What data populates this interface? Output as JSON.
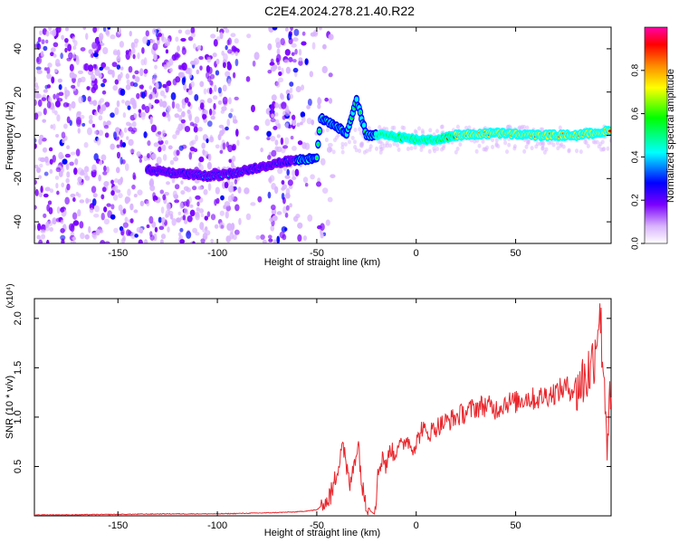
{
  "title": "C2E4.2024.278.21.40.R22",
  "colors": {
    "axis": "#000000",
    "snr_line": "#e8262c",
    "background": "#ffffff",
    "colormap": [
      "#ffffff",
      "#d9b3ff",
      "#7a00ff",
      "#0000ff",
      "#00ffff",
      "#00ff00",
      "#ffff00",
      "#ff8c00",
      "#ff0000",
      "#ff00aa"
    ]
  },
  "chart_data": [
    {
      "type": "heatmap",
      "title": "C2E4.2024.278.21.40.R22",
      "xlabel": "Height of straight line (km)",
      "ylabel": "Frequency (Hz)",
      "xlim": [
        -192,
        98
      ],
      "ylim": [
        -50,
        50
      ],
      "xticks": [
        -150,
        -100,
        -50,
        0,
        50
      ],
      "yticks": [
        -40,
        -20,
        0,
        20,
        40
      ],
      "colorbar": {
        "label": "Normalized spectral amplitude",
        "range": [
          0,
          1
        ],
        "ticks": [
          "0.0",
          "0.2",
          "0.4",
          "0.6",
          "0.8"
        ]
      },
      "ridge": [
        {
          "x": -135,
          "y": -16
        },
        {
          "x": -125,
          "y": -17
        },
        {
          "x": -105,
          "y": -19
        },
        {
          "x": -95,
          "y": -18
        },
        {
          "x": -85,
          "y": -16
        },
        {
          "x": -75,
          "y": -14
        },
        {
          "x": -65,
          "y": -12
        },
        {
          "x": -55,
          "y": -11
        },
        {
          "x": -50,
          "y": -10
        },
        {
          "x": -48,
          "y": 8
        },
        {
          "x": -40,
          "y": 4
        },
        {
          "x": -35,
          "y": 1
        },
        {
          "x": -30,
          "y": 16
        },
        {
          "x": -25,
          "y": 0
        },
        {
          "x": -15,
          "y": 0
        },
        {
          "x": 0,
          "y": -2
        },
        {
          "x": 10,
          "y": -2
        },
        {
          "x": 20,
          "y": 0
        },
        {
          "x": 40,
          "y": 1
        },
        {
          "x": 60,
          "y": 0
        },
        {
          "x": 70,
          "y": 0
        },
        {
          "x": 80,
          "y": 0
        },
        {
          "x": 98,
          "y": 2
        }
      ]
    },
    {
      "type": "line",
      "title": "",
      "xlabel": "Height of straight line (km)",
      "ylabel": "SNR (10 * v/v)",
      "y_multiplier": "(x10⁴)",
      "xlim": [
        -192,
        98
      ],
      "ylim": [
        0,
        2.2
      ],
      "xticks": [
        -150,
        -100,
        -50,
        0,
        50
      ],
      "yticks": [
        0.5,
        1.0,
        1.5,
        2.0
      ],
      "ytick_labels": [
        "0.5",
        "1.0",
        "1.5",
        "2.0"
      ],
      "series": [
        {
          "values_x": [
            -192,
            -175,
            -150,
            -125,
            -100,
            -75,
            -60,
            -50,
            -45,
            -42,
            -39,
            -37,
            -35,
            -33,
            -31,
            -29,
            -27,
            -25,
            -23,
            -21,
            -19,
            -17,
            -15,
            -13,
            -11,
            -9,
            -7,
            -5,
            -3,
            -1,
            1,
            3,
            5,
            7,
            10,
            15,
            20,
            25,
            30,
            35,
            40,
            45,
            50,
            55,
            60,
            65,
            70,
            75,
            80,
            85,
            88,
            90,
            92,
            94,
            96,
            98
          ],
          "values_y": [
            0.01,
            0.01,
            0.015,
            0.02,
            0.02,
            0.03,
            0.04,
            0.06,
            0.15,
            0.25,
            0.55,
            0.78,
            0.45,
            0.3,
            0.6,
            0.72,
            0.25,
            0.15,
            0.05,
            0.02,
            0.45,
            0.62,
            0.5,
            0.7,
            0.6,
            0.75,
            0.68,
            0.8,
            0.72,
            0.7,
            0.78,
            0.9,
            0.82,
            0.85,
            0.9,
            0.95,
            1.0,
            1.05,
            1.1,
            1.12,
            1.08,
            1.15,
            1.15,
            1.2,
            1.18,
            1.22,
            1.25,
            1.3,
            1.28,
            1.4,
            1.5,
            1.7,
            2.1,
            1.6,
            0.8,
            1.2
          ]
        }
      ]
    }
  ]
}
